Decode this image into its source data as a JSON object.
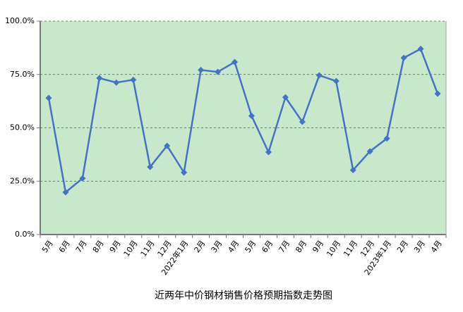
{
  "chart_data": {
    "type": "line",
    "title": "近两年中价钢材销售价格预期指数走势图",
    "categories": [
      "5月",
      "6月",
      "7月",
      "8月",
      "9月",
      "10月",
      "11月",
      "12月",
      "2022年1月",
      "2月",
      "3月",
      "4月",
      "5月",
      "6月",
      "7月",
      "8月",
      "9月",
      "10月",
      "11月",
      "12月",
      "2023年1月",
      "2月",
      "3月",
      "4月"
    ],
    "values": [
      64.0,
      19.8,
      26.3,
      73.3,
      71.2,
      72.5,
      31.7,
      41.6,
      29.1,
      77.1,
      76.2,
      80.8,
      55.6,
      38.6,
      64.3,
      52.8,
      74.6,
      71.9,
      30.2,
      39.0,
      45.0,
      82.8,
      87.0,
      66.0
    ],
    "color": "#4472c4",
    "background": "#c8e8cc",
    "ylim": [
      0,
      100
    ],
    "yticks": [
      {
        "value": 0,
        "label": "0.0%"
      },
      {
        "value": 25,
        "label": "25.0%"
      },
      {
        "value": 50,
        "label": "50.0%"
      },
      {
        "value": 75,
        "label": "75.0%"
      },
      {
        "value": 100,
        "label": "100.0%"
      }
    ],
    "grid": true
  }
}
